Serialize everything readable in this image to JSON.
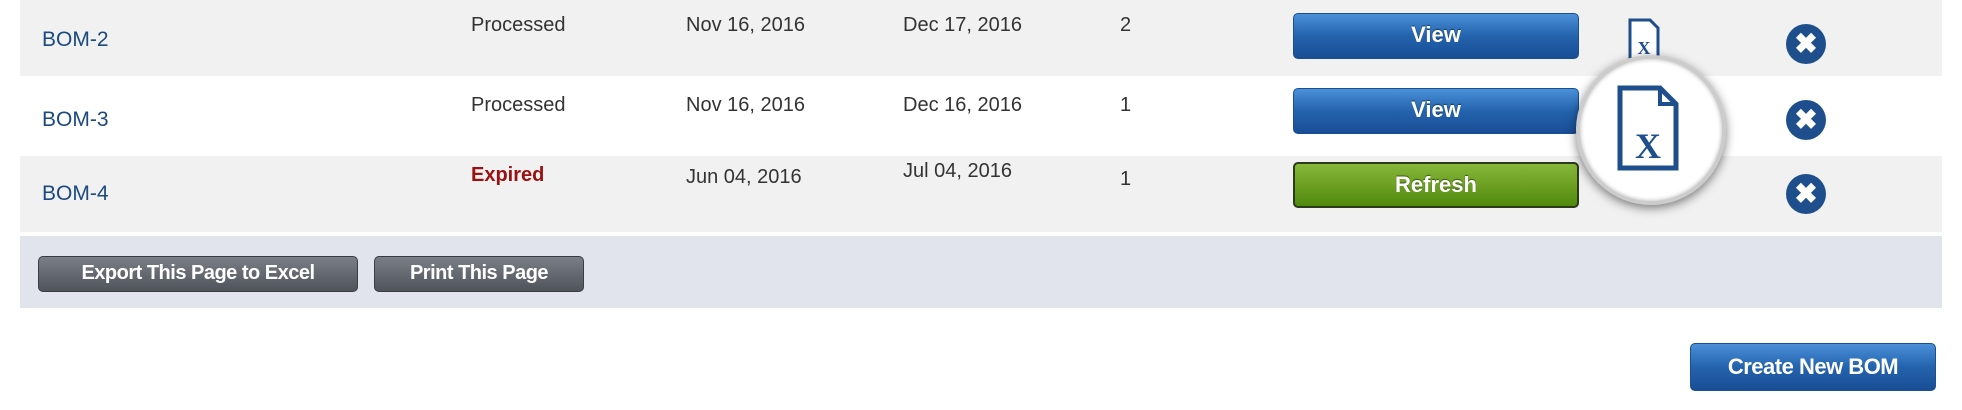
{
  "rows": [
    {
      "name": "BOM-2",
      "status": "Processed",
      "created": "Nov 16, 2016",
      "expires": "Dec 17, 2016",
      "count": "2",
      "action": "View"
    },
    {
      "name": "BOM-3",
      "status": "Processed",
      "created": "Nov 16, 2016",
      "expires": "Dec 16, 2016",
      "count": "1",
      "action": "View"
    },
    {
      "name": "BOM-4",
      "status": "Expired",
      "created": "Jun 04, 2016",
      "expires": "Jul 04, 2016",
      "count": "1",
      "action": "Refresh"
    }
  ],
  "footer": {
    "export_label": "Export This Page to Excel",
    "print_label": "Print This Page"
  },
  "create_label": "Create New BOM",
  "icons": {
    "export": "excel-file-icon",
    "delete": "delete-circle-x-icon"
  },
  "colors": {
    "link": "#1a4a80",
    "expired": "#9b1010",
    "view": "#2463ad",
    "refresh": "#6da023"
  }
}
